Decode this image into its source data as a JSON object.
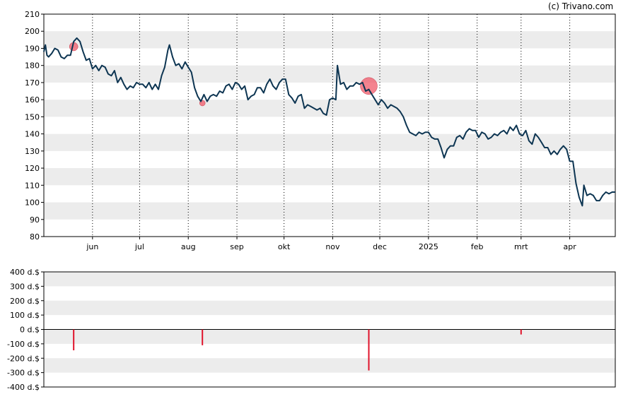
{
  "copyright": "(c) Trivano.com",
  "chart_data": [
    {
      "type": "line",
      "title": "",
      "xlabel": "",
      "ylabel": "",
      "ylim": [
        80,
        210
      ],
      "yticks": [
        "210",
        "200",
        "190",
        "180",
        "170",
        "160",
        "150",
        "140",
        "130",
        "120",
        "110",
        "100",
        "90",
        "80"
      ],
      "x_tick_labels": [
        "jun",
        "jul",
        "aug",
        "sep",
        "okt",
        "nov",
        "dec",
        "2025",
        "feb",
        "mrt",
        "apr"
      ],
      "x_tick_dates": [
        "2024-06-01",
        "2024-07-01",
        "2024-08-01",
        "2024-09-01",
        "2024-10-01",
        "2024-11-01",
        "2024-12-01",
        "2025-01-01",
        "2025-02-01",
        "2025-03-01",
        "2025-04-01"
      ],
      "xlim": [
        "2024-05-01",
        "2025-04-30"
      ],
      "grid": "alternating horizontal bands, dotted vertical lines at month ticks",
      "line_color": "#0d3552",
      "series": [
        {
          "points": [
            [
              "2024-05-01",
              188
            ],
            [
              "2024-05-02",
              192
            ],
            [
              "2024-05-03",
              186
            ],
            [
              "2024-05-04",
              185
            ],
            [
              "2024-05-06",
              187
            ],
            [
              "2024-05-08",
              190
            ],
            [
              "2024-05-10",
              189
            ],
            [
              "2024-05-12",
              185
            ],
            [
              "2024-05-14",
              184
            ],
            [
              "2024-05-16",
              186
            ],
            [
              "2024-05-18",
              186
            ],
            [
              "2024-05-20",
              194
            ],
            [
              "2024-05-22",
              196
            ],
            [
              "2024-05-24",
              194
            ],
            [
              "2024-05-26",
              188
            ],
            [
              "2024-05-28",
              183
            ],
            [
              "2024-05-30",
              184
            ],
            [
              "2024-06-01",
              178
            ],
            [
              "2024-06-03",
              180
            ],
            [
              "2024-06-05",
              177
            ],
            [
              "2024-06-07",
              180
            ],
            [
              "2024-06-09",
              179
            ],
            [
              "2024-06-11",
              175
            ],
            [
              "2024-06-13",
              174
            ],
            [
              "2024-06-15",
              177
            ],
            [
              "2024-06-17",
              170
            ],
            [
              "2024-06-19",
              173
            ],
            [
              "2024-06-21",
              169
            ],
            [
              "2024-06-23",
              166
            ],
            [
              "2024-06-25",
              168
            ],
            [
              "2024-06-27",
              167
            ],
            [
              "2024-06-29",
              170
            ],
            [
              "2024-07-01",
              169
            ],
            [
              "2024-07-03",
              169
            ],
            [
              "2024-07-05",
              167
            ],
            [
              "2024-07-07",
              170
            ],
            [
              "2024-07-09",
              166
            ],
            [
              "2024-07-11",
              169
            ],
            [
              "2024-07-13",
              166
            ],
            [
              "2024-07-15",
              174
            ],
            [
              "2024-07-17",
              179
            ],
            [
              "2024-07-19",
              189
            ],
            [
              "2024-07-20",
              192
            ],
            [
              "2024-07-22",
              185
            ],
            [
              "2024-07-24",
              180
            ],
            [
              "2024-07-26",
              181
            ],
            [
              "2024-07-28",
              178
            ],
            [
              "2024-07-30",
              182
            ],
            [
              "2024-08-01",
              179
            ],
            [
              "2024-08-03",
              176
            ],
            [
              "2024-08-05",
              167
            ],
            [
              "2024-08-07",
              162
            ],
            [
              "2024-08-09",
              159
            ],
            [
              "2024-08-11",
              163
            ],
            [
              "2024-08-13",
              159
            ],
            [
              "2024-08-15",
              162
            ],
            [
              "2024-08-17",
              163
            ],
            [
              "2024-08-19",
              162
            ],
            [
              "2024-08-21",
              165
            ],
            [
              "2024-08-23",
              164
            ],
            [
              "2024-08-25",
              168
            ],
            [
              "2024-08-27",
              169
            ],
            [
              "2024-08-29",
              166
            ],
            [
              "2024-08-31",
              170
            ],
            [
              "2024-09-02",
              169
            ],
            [
              "2024-09-04",
              166
            ],
            [
              "2024-09-06",
              168
            ],
            [
              "2024-09-08",
              160
            ],
            [
              "2024-09-10",
              162
            ],
            [
              "2024-09-12",
              163
            ],
            [
              "2024-09-14",
              167
            ],
            [
              "2024-09-16",
              167
            ],
            [
              "2024-09-18",
              164
            ],
            [
              "2024-09-20",
              169
            ],
            [
              "2024-09-22",
              172
            ],
            [
              "2024-09-24",
              168
            ],
            [
              "2024-09-26",
              166
            ],
            [
              "2024-09-28",
              170
            ],
            [
              "2024-09-30",
              172
            ],
            [
              "2024-10-02",
              172
            ],
            [
              "2024-10-04",
              163
            ],
            [
              "2024-10-06",
              161
            ],
            [
              "2024-10-08",
              158
            ],
            [
              "2024-10-10",
              162
            ],
            [
              "2024-10-12",
              163
            ],
            [
              "2024-10-14",
              155
            ],
            [
              "2024-10-16",
              157
            ],
            [
              "2024-10-18",
              156
            ],
            [
              "2024-10-20",
              155
            ],
            [
              "2024-10-22",
              154
            ],
            [
              "2024-10-24",
              155
            ],
            [
              "2024-10-26",
              152
            ],
            [
              "2024-10-28",
              151
            ],
            [
              "2024-10-30",
              160
            ],
            [
              "2024-11-01",
              161
            ],
            [
              "2024-11-03",
              160
            ],
            [
              "2024-11-04",
              180
            ],
            [
              "2024-11-06",
              169
            ],
            [
              "2024-11-08",
              170
            ],
            [
              "2024-11-10",
              166
            ],
            [
              "2024-11-12",
              168
            ],
            [
              "2024-11-14",
              168
            ],
            [
              "2024-11-16",
              170
            ],
            [
              "2024-11-18",
              169
            ],
            [
              "2024-11-20",
              170
            ],
            [
              "2024-11-22",
              165
            ],
            [
              "2024-11-24",
              166
            ],
            [
              "2024-11-26",
              163
            ],
            [
              "2024-11-28",
              160
            ],
            [
              "2024-11-30",
              157
            ],
            [
              "2024-12-02",
              160
            ],
            [
              "2024-12-04",
              158
            ],
            [
              "2024-12-06",
              155
            ],
            [
              "2024-12-08",
              157
            ],
            [
              "2024-12-10",
              156
            ],
            [
              "2024-12-12",
              155
            ],
            [
              "2024-12-14",
              153
            ],
            [
              "2024-12-16",
              150
            ],
            [
              "2024-12-18",
              145
            ],
            [
              "2024-12-20",
              141
            ],
            [
              "2024-12-22",
              140
            ],
            [
              "2024-12-24",
              139
            ],
            [
              "2024-12-26",
              141
            ],
            [
              "2024-12-28",
              140
            ],
            [
              "2024-12-30",
              141
            ],
            [
              "2025-01-01",
              141
            ],
            [
              "2025-01-03",
              138
            ],
            [
              "2025-01-05",
              137
            ],
            [
              "2025-01-07",
              137
            ],
            [
              "2025-01-09",
              132
            ],
            [
              "2025-01-11",
              126
            ],
            [
              "2025-01-13",
              131
            ],
            [
              "2025-01-15",
              133
            ],
            [
              "2025-01-17",
              133
            ],
            [
              "2025-01-19",
              138
            ],
            [
              "2025-01-21",
              139
            ],
            [
              "2025-01-23",
              137
            ],
            [
              "2025-01-25",
              141
            ],
            [
              "2025-01-27",
              143
            ],
            [
              "2025-01-29",
              142
            ],
            [
              "2025-01-31",
              142
            ],
            [
              "2025-02-02",
              138
            ],
            [
              "2025-02-04",
              141
            ],
            [
              "2025-02-06",
              140
            ],
            [
              "2025-02-08",
              137
            ],
            [
              "2025-02-10",
              138
            ],
            [
              "2025-02-12",
              140
            ],
            [
              "2025-02-14",
              139
            ],
            [
              "2025-02-16",
              141
            ],
            [
              "2025-02-18",
              142
            ],
            [
              "2025-02-20",
              140
            ],
            [
              "2025-02-22",
              144
            ],
            [
              "2025-02-24",
              142
            ],
            [
              "2025-02-26",
              145
            ],
            [
              "2025-02-28",
              140
            ],
            [
              "2025-03-02",
              139
            ],
            [
              "2025-03-04",
              142
            ],
            [
              "2025-03-06",
              136
            ],
            [
              "2025-03-08",
              134
            ],
            [
              "2025-03-10",
              140
            ],
            [
              "2025-03-12",
              138
            ],
            [
              "2025-03-14",
              135
            ],
            [
              "2025-03-16",
              132
            ],
            [
              "2025-03-18",
              132
            ],
            [
              "2025-03-20",
              128
            ],
            [
              "2025-03-22",
              130
            ],
            [
              "2025-03-24",
              128
            ],
            [
              "2025-03-26",
              131
            ],
            [
              "2025-03-28",
              133
            ],
            [
              "2025-03-30",
              131
            ],
            [
              "2025-04-01",
              124
            ],
            [
              "2025-04-03",
              124
            ],
            [
              "2025-04-05",
              111
            ],
            [
              "2025-04-07",
              103
            ],
            [
              "2025-04-09",
              98
            ],
            [
              "2025-04-10",
              110
            ],
            [
              "2025-04-12",
              104
            ],
            [
              "2025-04-14",
              105
            ],
            [
              "2025-04-16",
              104
            ],
            [
              "2025-04-18",
              101
            ],
            [
              "2025-04-20",
              101
            ],
            [
              "2025-04-22",
              104
            ],
            [
              "2025-04-24",
              106
            ],
            [
              "2025-04-26",
              105
            ],
            [
              "2025-04-28",
              106
            ],
            [
              "2025-04-30",
              106
            ]
          ]
        }
      ],
      "markers": [
        {
          "date": "2024-05-20",
          "value": 191,
          "size": "small",
          "color": "#f05a6a"
        },
        {
          "date": "2024-08-10",
          "value": 158,
          "size": "tiny",
          "color": "#f05a6a"
        },
        {
          "date": "2024-11-24",
          "value": 168,
          "size": "large",
          "color": "#f05a6a"
        }
      ]
    },
    {
      "type": "bar",
      "title": "",
      "xlabel": "",
      "ylabel": "",
      "ylim": [
        -400,
        400
      ],
      "yticks": [
        "400 d.$",
        "300 d.$",
        "200 d.$",
        "100 d.$",
        "0 d.$",
        "-100 d.$",
        "-200 d.$",
        "-300 d.$",
        "-400 d.$"
      ],
      "bar_color": "#e0132b",
      "bars": [
        {
          "date": "2024-05-20",
          "value": -145
        },
        {
          "date": "2024-08-10",
          "value": -110
        },
        {
          "date": "2024-11-24",
          "value": -285
        },
        {
          "date": "2025-03-01",
          "value": -35
        }
      ]
    }
  ]
}
